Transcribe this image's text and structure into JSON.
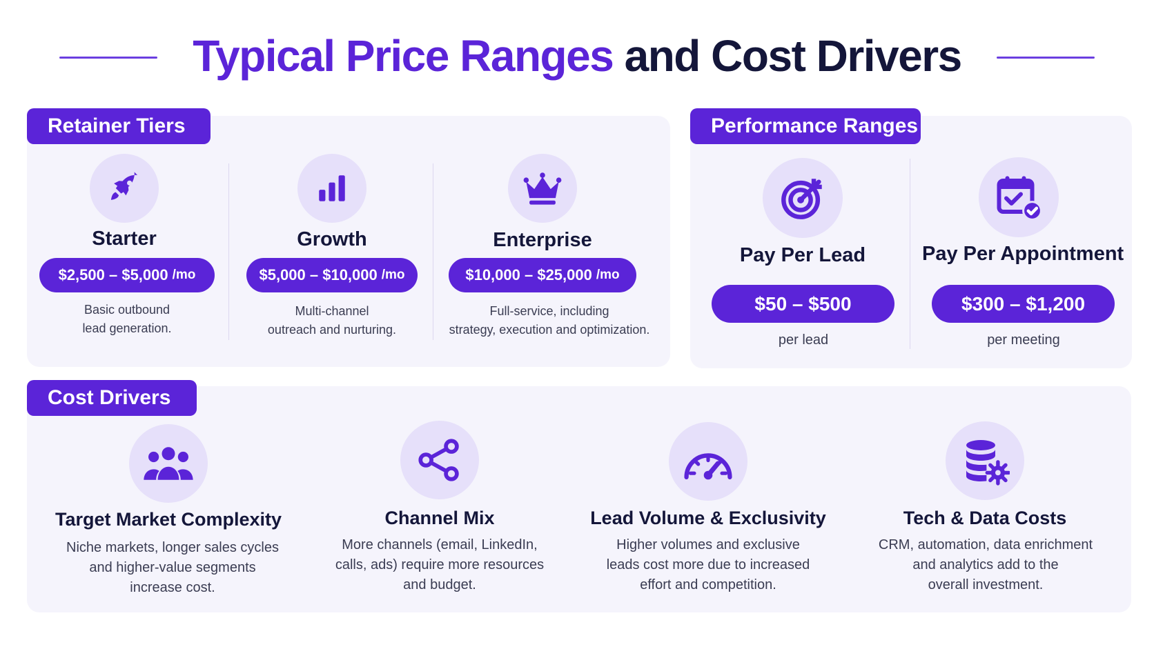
{
  "header": {
    "title_accent": "Typical Price Ranges",
    "title_rest": "and Cost Drivers"
  },
  "retainer": {
    "label": "Retainer Tiers",
    "tiers": [
      {
        "name": "Starter",
        "price": "$2,500 – $5,000",
        "unit": "/mo",
        "desc_lines": [
          "Basic outbound",
          "lead generation."
        ],
        "icon": "rocket-icon"
      },
      {
        "name": "Growth",
        "price": "$5,000 – $10,000",
        "unit": "/mo",
        "desc_lines": [
          "Multi-channel",
          "outreach and nurturing."
        ],
        "icon": "bar-chart-icon"
      },
      {
        "name": "Enterprise",
        "price": "$10,000 – $25,000",
        "unit": "/mo",
        "desc_lines": [
          "Full-service, including",
          "strategy, execution and optimization."
        ],
        "icon": "crown-icon"
      }
    ]
  },
  "performance": {
    "label": "Performance Ranges",
    "items": [
      {
        "name": "Pay Per Lead",
        "price": "$50 – $500",
        "sub": "per lead",
        "icon": "target-icon"
      },
      {
        "name": "Pay Per Appointment",
        "price": "$300 – $1,200",
        "sub": "per meeting",
        "icon": "calendar-check-icon"
      }
    ]
  },
  "drivers": {
    "label": "Cost Drivers",
    "items": [
      {
        "name": "Target Market Complexity",
        "desc_lines": [
          "Niche markets, longer sales cycles",
          "and higher-value segments",
          "increase cost."
        ],
        "icon": "people-group-icon"
      },
      {
        "name": "Channel Mix",
        "desc_lines": [
          "More channels (email, LinkedIn,",
          "calls, ads) require more resources",
          "and budget."
        ],
        "icon": "share-icon"
      },
      {
        "name": "Lead Volume & Exclusivity",
        "desc_lines": [
          "Higher volumes and exclusive",
          "leads cost more due to increased",
          "effort and competition."
        ],
        "icon": "gauge-icon"
      },
      {
        "name": "Tech & Data Costs",
        "desc_lines": [
          "CRM, automation, data enrichment",
          "and analytics add to the",
          "overall investment."
        ],
        "icon": "database-gear-icon"
      }
    ]
  },
  "colors": {
    "accent": "#5b24d8",
    "panel": "#f5f4fc",
    "icon_bg": "#e6e0fa",
    "text_dark": "#14163a"
  }
}
